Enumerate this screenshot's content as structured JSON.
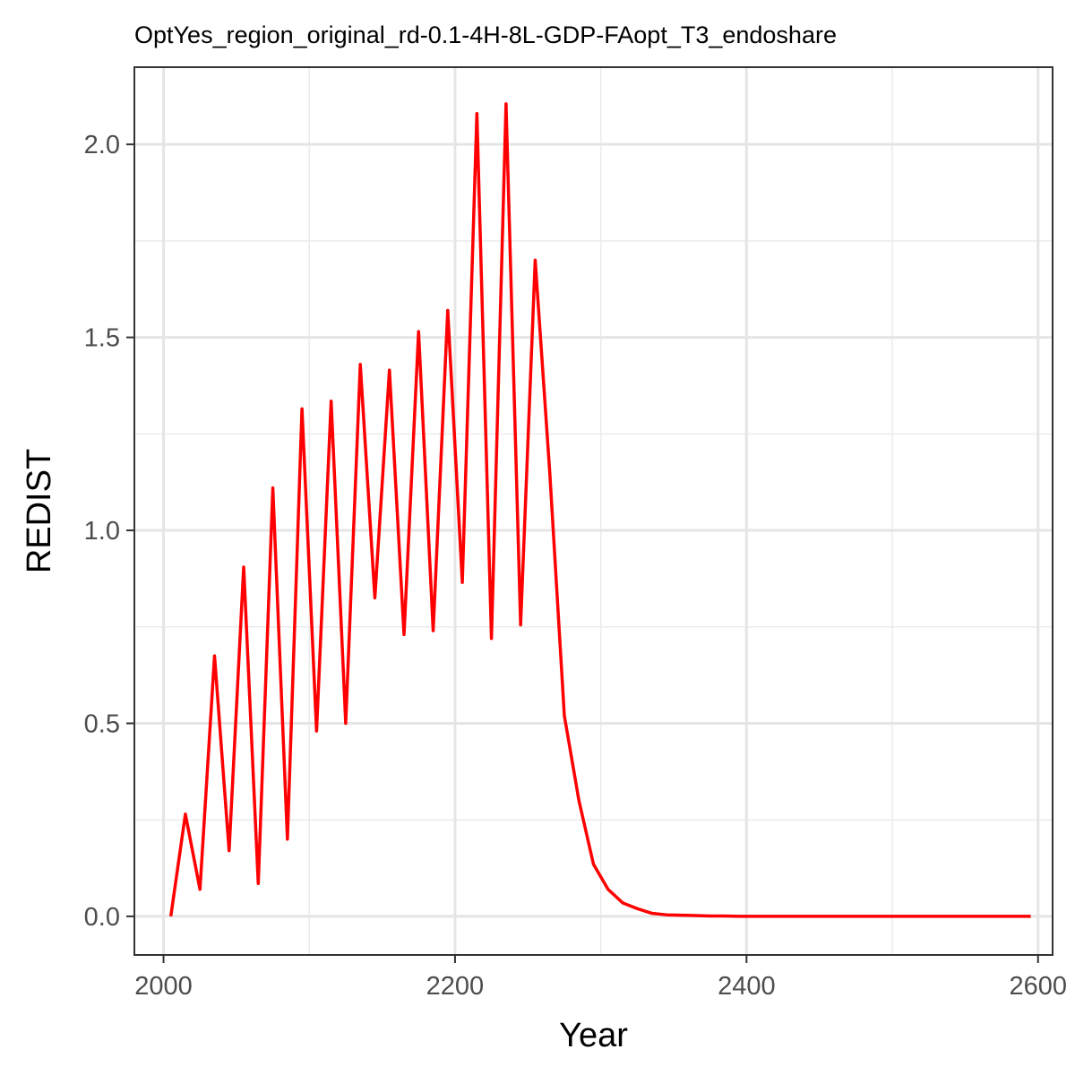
{
  "chart_data": {
    "type": "line",
    "title": "OptYes_region_original_rd-0.1-4H-8L-GDP-FAopt_T3_endoshare",
    "xlabel": "Year",
    "ylabel": "REDIST",
    "xlim": [
      1980,
      2610
    ],
    "ylim": [
      -0.1,
      2.2
    ],
    "x_ticks": [
      2000,
      2200,
      2400,
      2600
    ],
    "x_tick_labels": [
      "2000",
      "2200",
      "2400",
      "2600"
    ],
    "y_ticks": [
      0.0,
      0.5,
      1.0,
      1.5,
      2.0
    ],
    "y_tick_labels": [
      "0.0",
      "0.5",
      "1.0",
      "1.5",
      "2.0"
    ],
    "grid": true,
    "series": [
      {
        "color": "#ff0000",
        "x": [
          2005,
          2015,
          2025,
          2035,
          2045,
          2055,
          2065,
          2075,
          2085,
          2095,
          2105,
          2115,
          2125,
          2135,
          2145,
          2155,
          2165,
          2175,
          2185,
          2195,
          2205,
          2215,
          2225,
          2235,
          2245,
          2255,
          2265,
          2275,
          2285,
          2295,
          2305,
          2315,
          2325,
          2335,
          2345,
          2355,
          2365,
          2375,
          2385,
          2395,
          2405,
          2415,
          2425,
          2435,
          2445,
          2455,
          2465,
          2475,
          2485,
          2495,
          2505,
          2515,
          2525,
          2535,
          2545,
          2555,
          2565,
          2575,
          2585,
          2595
        ],
        "y": [
          0.0,
          0.265,
          0.07,
          0.675,
          0.17,
          0.905,
          0.085,
          1.11,
          0.2,
          1.315,
          0.48,
          1.335,
          0.5,
          1.43,
          0.825,
          1.415,
          0.73,
          1.515,
          0.74,
          1.57,
          0.865,
          2.08,
          0.72,
          2.105,
          0.755,
          1.7,
          1.15,
          0.52,
          0.3,
          0.135,
          0.07,
          0.035,
          0.02,
          0.008,
          0.004,
          0.003,
          0.002,
          0.001,
          0.001,
          0.0,
          0.0,
          0.0,
          0.0,
          0.0,
          0.0,
          0.0,
          0.0,
          0.0,
          0.0,
          0.0,
          0.0,
          0.0,
          0.0,
          0.0,
          0.0,
          0.0,
          0.0,
          0.0,
          0.0,
          0.0
        ]
      }
    ]
  }
}
